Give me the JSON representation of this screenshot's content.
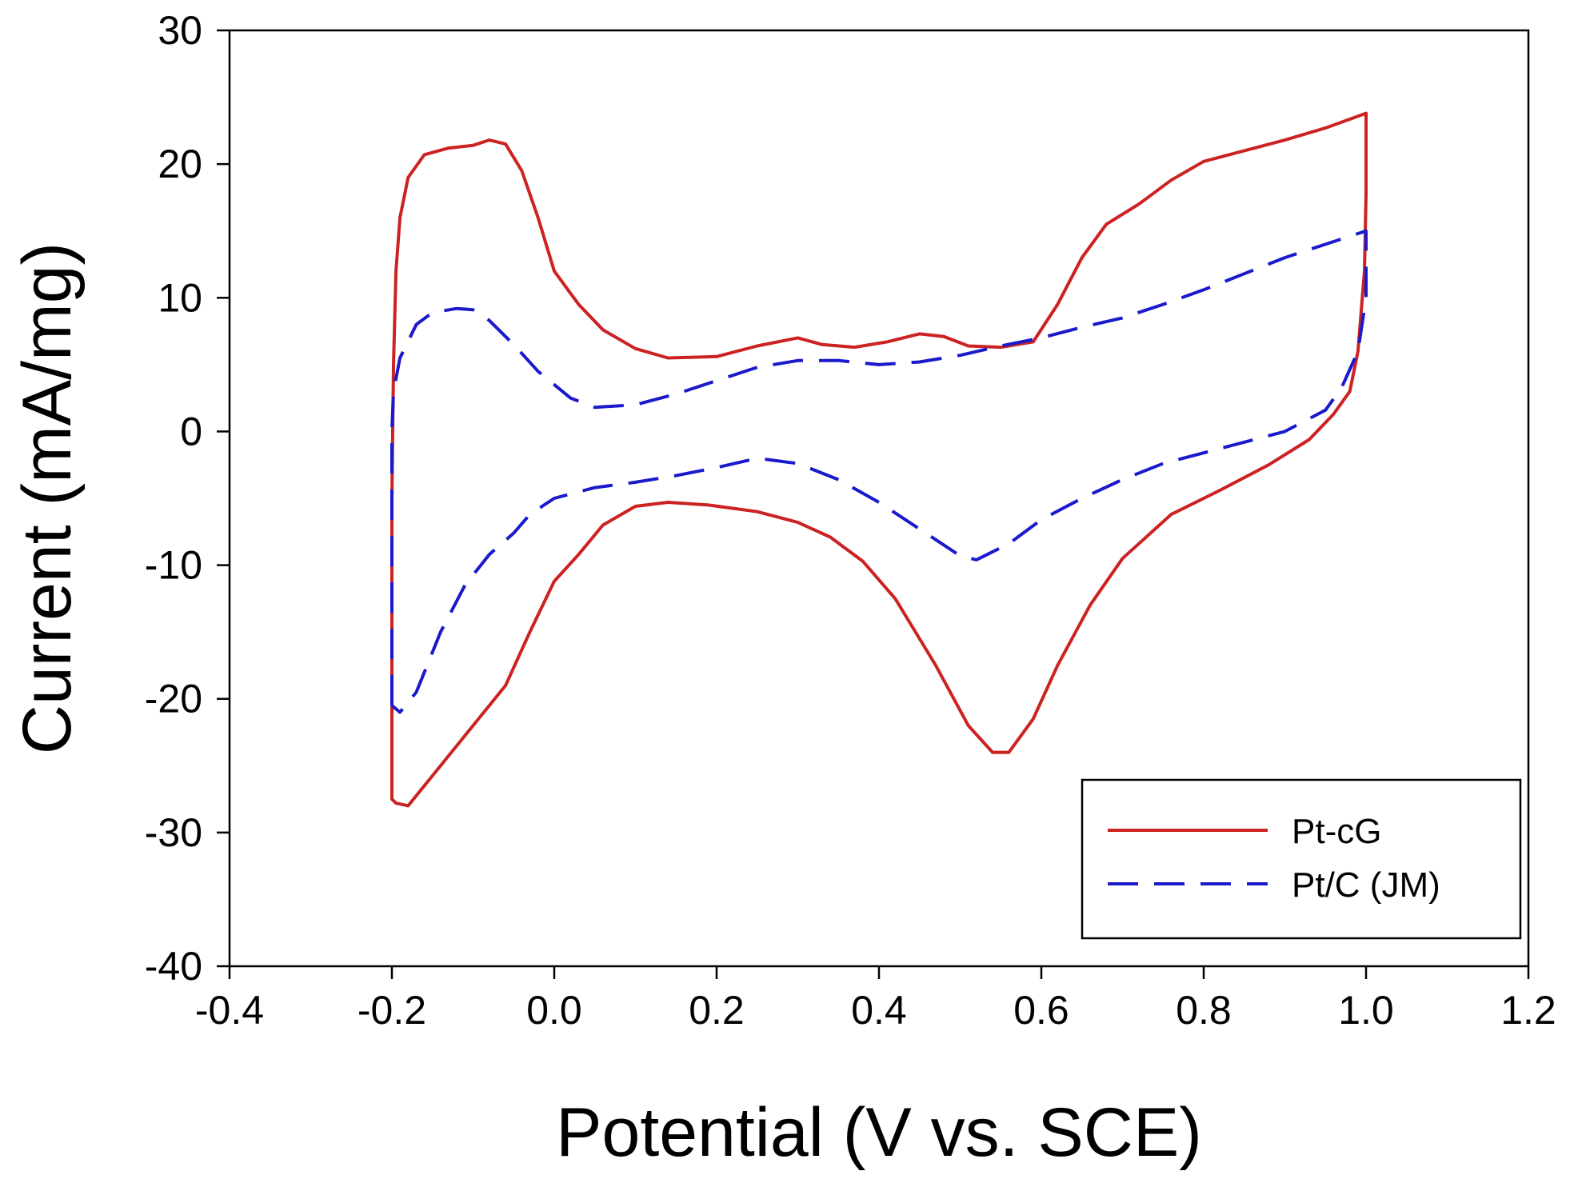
{
  "chart_data": {
    "type": "line",
    "title": "",
    "xlabel": "Potential (V vs. SCE)",
    "ylabel": "Current (mA/mg)",
    "xlim": [
      -0.4,
      1.2
    ],
    "ylim": [
      -40,
      30
    ],
    "xticks": [
      -0.4,
      -0.2,
      0.0,
      0.2,
      0.4,
      0.6,
      0.8,
      1.0,
      1.2
    ],
    "xtick_labels": [
      "-0.4",
      "-0.2",
      "0.0",
      "0.2",
      "0.4",
      "0.6",
      "0.8",
      "1.0",
      "1.2"
    ],
    "yticks": [
      30,
      20,
      10,
      0,
      -10,
      -20,
      -30,
      -40
    ],
    "ytick_labels": [
      "30",
      "20",
      "10",
      "0",
      "-10",
      "-20",
      "-30",
      "-40"
    ],
    "grid": false,
    "legend_position": "bottom-right",
    "series": [
      {
        "name": "Pt-cG",
        "color": "#cc2222",
        "style": "solid",
        "points": [
          [
            -0.2,
            -27.5
          ],
          [
            -0.2,
            -20
          ],
          [
            -0.2,
            -5
          ],
          [
            -0.198,
            5
          ],
          [
            -0.195,
            12
          ],
          [
            -0.19,
            16
          ],
          [
            -0.18,
            19
          ],
          [
            -0.16,
            20.7
          ],
          [
            -0.13,
            21.2
          ],
          [
            -0.1,
            21.4
          ],
          [
            -0.08,
            21.8
          ],
          [
            -0.06,
            21.5
          ],
          [
            -0.04,
            19.5
          ],
          [
            -0.02,
            16
          ],
          [
            0.0,
            12
          ],
          [
            0.03,
            9.5
          ],
          [
            0.06,
            7.6
          ],
          [
            0.1,
            6.2
          ],
          [
            0.14,
            5.5
          ],
          [
            0.2,
            5.6
          ],
          [
            0.25,
            6.4
          ],
          [
            0.3,
            7.0
          ],
          [
            0.33,
            6.5
          ],
          [
            0.37,
            6.3
          ],
          [
            0.41,
            6.7
          ],
          [
            0.45,
            7.3
          ],
          [
            0.48,
            7.1
          ],
          [
            0.51,
            6.4
          ],
          [
            0.55,
            6.3
          ],
          [
            0.59,
            6.7
          ],
          [
            0.62,
            9.5
          ],
          [
            0.65,
            13
          ],
          [
            0.68,
            15.5
          ],
          [
            0.72,
            17
          ],
          [
            0.76,
            18.8
          ],
          [
            0.8,
            20.2
          ],
          [
            0.85,
            21
          ],
          [
            0.9,
            21.8
          ],
          [
            0.95,
            22.7
          ],
          [
            1.0,
            23.8
          ],
          [
            1.0,
            17.8
          ],
          [
            0.998,
            12
          ],
          [
            0.99,
            6
          ],
          [
            0.98,
            3
          ],
          [
            0.96,
            1.3
          ],
          [
            0.93,
            -0.6
          ],
          [
            0.88,
            -2.5
          ],
          [
            0.82,
            -4.4
          ],
          [
            0.76,
            -6.2
          ],
          [
            0.7,
            -9.5
          ],
          [
            0.66,
            -13
          ],
          [
            0.62,
            -17.5
          ],
          [
            0.59,
            -21.5
          ],
          [
            0.56,
            -24
          ],
          [
            0.54,
            -24
          ],
          [
            0.51,
            -22
          ],
          [
            0.47,
            -17.5
          ],
          [
            0.42,
            -12.5
          ],
          [
            0.38,
            -9.7
          ],
          [
            0.34,
            -7.9
          ],
          [
            0.3,
            -6.8
          ],
          [
            0.25,
            -6.0
          ],
          [
            0.19,
            -5.5
          ],
          [
            0.14,
            -5.3
          ],
          [
            0.1,
            -5.6
          ],
          [
            0.06,
            -7.0
          ],
          [
            0.03,
            -9.2
          ],
          [
            0.0,
            -11.2
          ],
          [
            -0.03,
            -15
          ],
          [
            -0.06,
            -19
          ],
          [
            -0.1,
            -22
          ],
          [
            -0.14,
            -25
          ],
          [
            -0.18,
            -28
          ],
          [
            -0.195,
            -27.8
          ],
          [
            -0.2,
            -27.5
          ]
        ]
      },
      {
        "name": "Pt/C (JM)",
        "color": "#1a1acc",
        "style": "dashed",
        "points": [
          [
            -0.2,
            -20.5
          ],
          [
            -0.2,
            -10
          ],
          [
            -0.2,
            0
          ],
          [
            -0.198,
            3
          ],
          [
            -0.19,
            5.5
          ],
          [
            -0.17,
            8
          ],
          [
            -0.15,
            8.9
          ],
          [
            -0.12,
            9.2
          ],
          [
            -0.1,
            9.1
          ],
          [
            -0.08,
            8.3
          ],
          [
            -0.05,
            6.5
          ],
          [
            -0.02,
            4.5
          ],
          [
            0.02,
            2.5
          ],
          [
            0.05,
            1.8
          ],
          [
            0.1,
            2.0
          ],
          [
            0.15,
            2.8
          ],
          [
            0.2,
            3.8
          ],
          [
            0.25,
            4.8
          ],
          [
            0.3,
            5.3
          ],
          [
            0.35,
            5.3
          ],
          [
            0.4,
            5.0
          ],
          [
            0.45,
            5.2
          ],
          [
            0.5,
            5.7
          ],
          [
            0.55,
            6.4
          ],
          [
            0.6,
            7.0
          ],
          [
            0.65,
            7.8
          ],
          [
            0.7,
            8.5
          ],
          [
            0.75,
            9.5
          ],
          [
            0.8,
            10.6
          ],
          [
            0.85,
            11.8
          ],
          [
            0.9,
            13.0
          ],
          [
            0.95,
            14.0
          ],
          [
            1.0,
            15.0
          ],
          [
            1.0,
            13
          ],
          [
            1.0,
            10
          ],
          [
            0.99,
            6
          ],
          [
            0.97,
            3.3
          ],
          [
            0.95,
            1.6
          ],
          [
            0.9,
            0
          ],
          [
            0.85,
            -0.8
          ],
          [
            0.8,
            -1.6
          ],
          [
            0.75,
            -2.4
          ],
          [
            0.7,
            -3.6
          ],
          [
            0.65,
            -5
          ],
          [
            0.6,
            -6.6
          ],
          [
            0.56,
            -8.4
          ],
          [
            0.52,
            -9.6
          ],
          [
            0.5,
            -9.3
          ],
          [
            0.45,
            -7.3
          ],
          [
            0.4,
            -5.3
          ],
          [
            0.35,
            -3.6
          ],
          [
            0.3,
            -2.4
          ],
          [
            0.25,
            -2.0
          ],
          [
            0.2,
            -2.7
          ],
          [
            0.15,
            -3.3
          ],
          [
            0.1,
            -3.8
          ],
          [
            0.05,
            -4.2
          ],
          [
            0.0,
            -5.0
          ],
          [
            -0.03,
            -6.2
          ],
          [
            -0.05,
            -7.6
          ],
          [
            -0.08,
            -9.2
          ],
          [
            -0.11,
            -11.5
          ],
          [
            -0.14,
            -15
          ],
          [
            -0.17,
            -19.5
          ],
          [
            -0.19,
            -21
          ],
          [
            -0.2,
            -20.5
          ]
        ]
      }
    ]
  }
}
